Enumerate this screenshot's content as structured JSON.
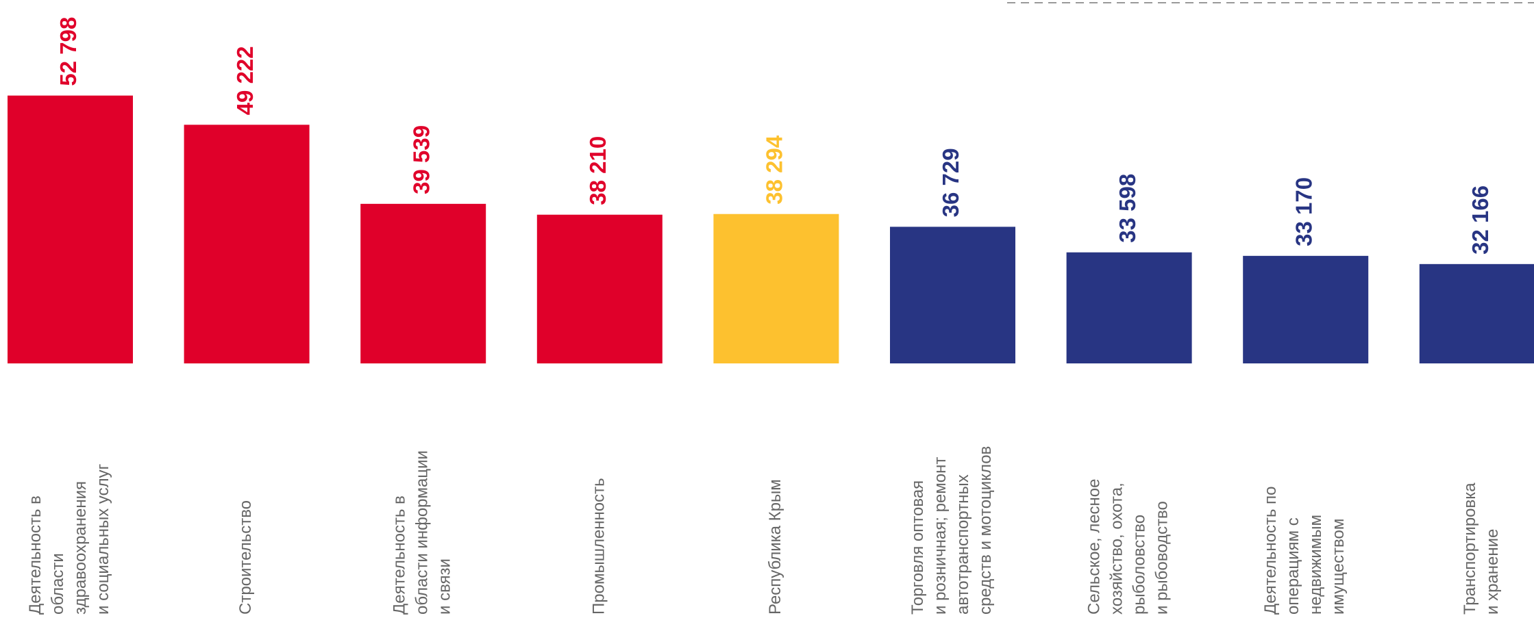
{
  "chart_data": {
    "type": "bar",
    "categories": [
      "Деятельность в\nобласти\nздравоохранения\nи социальных услуг",
      "Строительство",
      "Деятельность в\nобласти информации\nи связи",
      "Промышленность",
      "Республика Крым",
      "Торговля оптовая\nи розничная; ремонт\nавтотранспортных\nсредств и мотоциклов",
      "Сельское, лесное\nхозяйство, охота,\nрыболовство\nи рыбоводство",
      "Деятельность по\nоперациям с\nнедвижимым\nимуществом",
      "Транспортировка\nи хранение"
    ],
    "values": [
      52798,
      49222,
      39539,
      38210,
      38294,
      36729,
      33598,
      33170,
      32166
    ],
    "value_labels": [
      "52 798",
      "49 222",
      "39 539",
      "38 210",
      "38 294",
      "36 729",
      "33 598",
      "33 170",
      "32 166"
    ],
    "colors": [
      "#e0002a",
      "#e0002a",
      "#e0002a",
      "#e0002a",
      "#fdc12f",
      "#283583",
      "#283583",
      "#283583",
      "#283583"
    ],
    "ylim": [
      20000,
      64500
    ]
  }
}
